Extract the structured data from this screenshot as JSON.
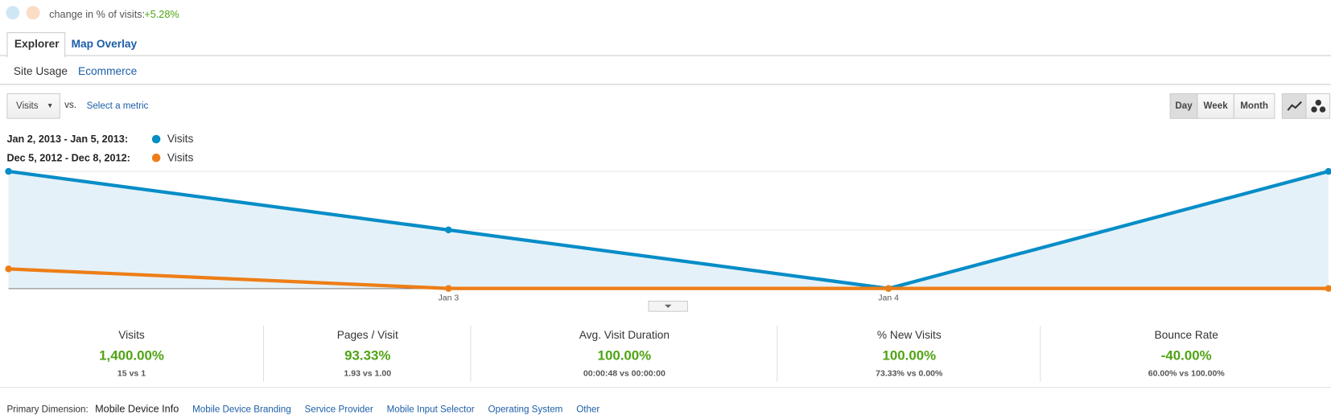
{
  "header": {
    "label": "change in % of visits:",
    "change": "+5.28%"
  },
  "tabs": [
    "Explorer",
    "Map Overlay"
  ],
  "subtabs": [
    "Site Usage",
    "Ecommerce"
  ],
  "controls": {
    "metric": "Visits",
    "vs": "vs.",
    "select": "Select a metric",
    "periods": [
      "Day",
      "Week",
      "Month"
    ]
  },
  "chart_data": {
    "type": "line",
    "categories": [
      null,
      "Jan 3",
      "Jan 4",
      null
    ],
    "series": [
      {
        "range": "Jan 2, 2013 - Jan 5, 2013:",
        "name": "Visits",
        "color": "#058dc7",
        "values": [
          6,
          3,
          0,
          6
        ]
      },
      {
        "range": "Dec 5, 2012 - Dec 8, 2012:",
        "name": "Visits",
        "color": "#ed7e17",
        "values": [
          1,
          0,
          0,
          0
        ]
      }
    ],
    "ylim": [
      0,
      6
    ],
    "yticks": [
      3,
      6
    ],
    "grid": true,
    "area": true
  },
  "scorecards": [
    {
      "name": "Visits",
      "value": "1,400.00%",
      "compare": "15 vs 1"
    },
    {
      "name": "Pages / Visit",
      "value": "93.33%",
      "compare": "1.93 vs 1.00"
    },
    {
      "name": "Avg. Visit Duration",
      "value": "100.00%",
      "compare": "00:00:48 vs 00:00:00"
    },
    {
      "name": "% New Visits",
      "value": "100.00%",
      "compare": "73.33% vs 0.00%"
    },
    {
      "name": "Bounce Rate",
      "value": "-40.00%",
      "compare": "60.00% vs 100.00%"
    }
  ],
  "dimensions": {
    "label": "Primary Dimension:",
    "current": "Mobile Device Info",
    "links": [
      "Mobile Device Branding",
      "Service Provider",
      "Mobile Input Selector",
      "Operating System",
      "Other"
    ]
  }
}
